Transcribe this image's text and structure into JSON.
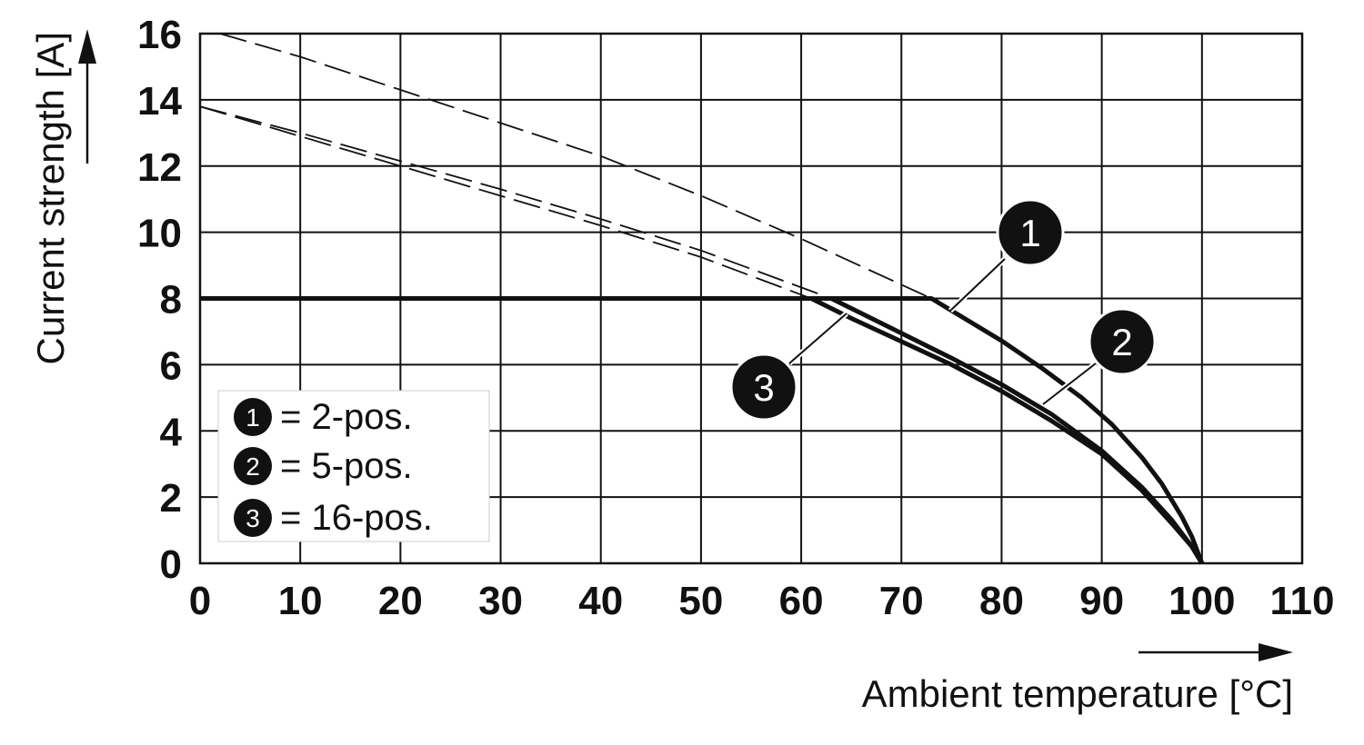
{
  "chart_data": {
    "type": "line",
    "xlabel": "Ambient temperature [°C]",
    "ylabel": "Current strength [A]",
    "xlim": [
      0,
      110
    ],
    "ylim": [
      0,
      16
    ],
    "x_ticks": [
      "0",
      "10",
      "20",
      "30",
      "40",
      "50",
      "60",
      "70",
      "80",
      "90",
      "100",
      "110"
    ],
    "y_ticks": [
      "0",
      "2",
      "4",
      "6",
      "8",
      "10",
      "12",
      "14",
      "16"
    ],
    "grid": true,
    "legend_position": "bottom-left",
    "legend": [
      {
        "marker": "1",
        "label": "= 2-pos."
      },
      {
        "marker": "2",
        "label": "= 5-pos."
      },
      {
        "marker": "3",
        "label": "= 16-pos."
      }
    ],
    "series": [
      {
        "marker": "1",
        "style": "solid",
        "points": [
          [
            0,
            8
          ],
          [
            73,
            8
          ],
          [
            76,
            7.45
          ],
          [
            80,
            6.72
          ],
          [
            84,
            5.9
          ],
          [
            88,
            5.0
          ],
          [
            91,
            4.2
          ],
          [
            94,
            3.2
          ],
          [
            96,
            2.4
          ],
          [
            98,
            1.4
          ],
          [
            99,
            0.8
          ],
          [
            100,
            0
          ]
        ]
      },
      {
        "marker": "2",
        "style": "solid",
        "points": [
          [
            0,
            8
          ],
          [
            63,
            8
          ],
          [
            66,
            7.55
          ],
          [
            70,
            6.95
          ],
          [
            75,
            6.2
          ],
          [
            80,
            5.4
          ],
          [
            85,
            4.5
          ],
          [
            90,
            3.4
          ],
          [
            94,
            2.3
          ],
          [
            97,
            1.3
          ],
          [
            99,
            0.5
          ],
          [
            100,
            0
          ]
        ]
      },
      {
        "marker": "3",
        "style": "solid",
        "points": [
          [
            0,
            8
          ],
          [
            61,
            8
          ],
          [
            65,
            7.4
          ],
          [
            70,
            6.7
          ],
          [
            75,
            6.0
          ],
          [
            80,
            5.2
          ],
          [
            85,
            4.3
          ],
          [
            90,
            3.3
          ],
          [
            94,
            2.2
          ],
          [
            97,
            1.2
          ],
          [
            99,
            0.5
          ],
          [
            100,
            0
          ]
        ]
      },
      {
        "marker": "1",
        "style": "dashed",
        "points": [
          [
            2,
            16
          ],
          [
            10,
            15.3
          ],
          [
            20,
            14.3
          ],
          [
            30,
            13.3
          ],
          [
            40,
            12.3
          ],
          [
            50,
            11.1
          ],
          [
            60,
            9.8
          ],
          [
            73,
            8
          ]
        ]
      },
      {
        "marker": "2",
        "style": "dashed",
        "points": [
          [
            0,
            13.8
          ],
          [
            10,
            13.0
          ],
          [
            20,
            12.15
          ],
          [
            30,
            11.3
          ],
          [
            40,
            10.4
          ],
          [
            50,
            9.45
          ],
          [
            63,
            8
          ]
        ]
      },
      {
        "marker": "3",
        "style": "dashed",
        "points": [
          [
            0,
            13.8
          ],
          [
            10,
            12.9
          ],
          [
            20,
            12.0
          ],
          [
            30,
            11.1
          ],
          [
            40,
            10.2
          ],
          [
            50,
            9.25
          ],
          [
            61,
            8
          ]
        ]
      }
    ]
  }
}
